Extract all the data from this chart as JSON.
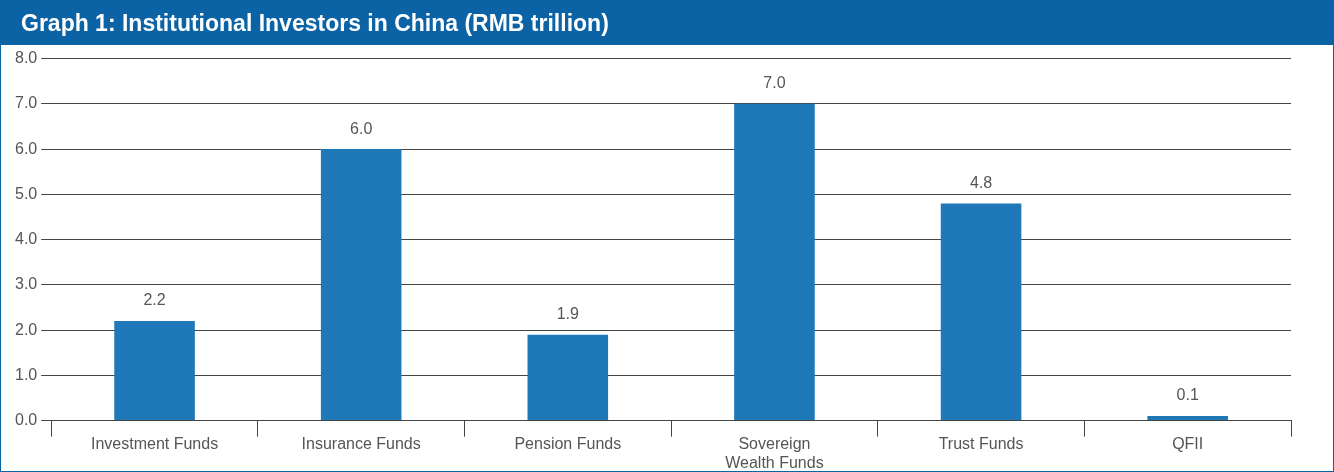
{
  "chart_data": {
    "type": "bar",
    "title": "Graph 1: Institutional Investors in China (RMB trillion)",
    "categories": [
      "Investment Funds",
      "Insurance Funds",
      "Pension Funds",
      "Sovereign Wealth Funds",
      "Trust Funds",
      "QFII"
    ],
    "values": [
      2.2,
      6.0,
      1.9,
      7.0,
      4.8,
      0.1
    ],
    "value_labels": [
      "2.2",
      "6.0",
      "1.9",
      "7.0",
      "4.8",
      "0.1"
    ],
    "color": "#1f78b8",
    "ylim": [
      0,
      8
    ],
    "yticks": [
      {
        "value": 0,
        "label": "0.0"
      },
      {
        "value": 1,
        "label": "1.0"
      },
      {
        "value": 2,
        "label": "2.0"
      },
      {
        "value": 3,
        "label": "3.0"
      },
      {
        "value": 4,
        "label": "4.0"
      },
      {
        "value": 5,
        "label": "5.0"
      },
      {
        "value": 6,
        "label": "6.0"
      },
      {
        "value": 7,
        "label": "7.0"
      },
      {
        "value": 8,
        "label": "8.0"
      }
    ],
    "grid": "y"
  }
}
